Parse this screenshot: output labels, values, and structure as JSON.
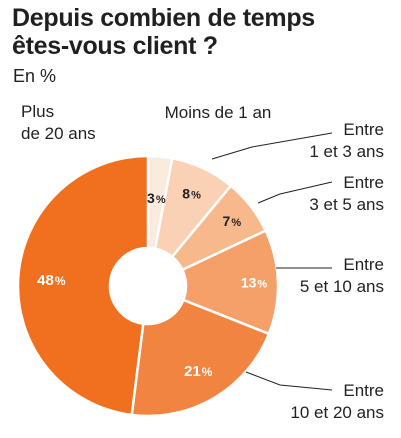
{
  "title_line1": "Depuis combien de temps",
  "title_line2": "êtes-vous client ?",
  "subtitle": "En %",
  "chart_data": {
    "type": "pie",
    "title": "Depuis combien de temps êtes-vous client ?",
    "subtitle": "En %",
    "donut": true,
    "categories": [
      "Moins de 1 an",
      "Entre 1 et 3 ans",
      "Entre 3 et 5 ans",
      "Entre 5 et 10 ans",
      "Entre 10 et 20 ans",
      "Plus de 20 ans"
    ],
    "values": [
      3,
      8,
      7,
      13,
      21,
      48
    ],
    "value_labels": [
      "3",
      "8",
      "7",
      "13",
      "21",
      "48"
    ],
    "percent_sign": "%",
    "label_lines": [
      [
        "Moins de 1 an"
      ],
      [
        "Entre",
        "1 et 3 ans"
      ],
      [
        "Entre",
        "3 et 5 ans"
      ],
      [
        "Entre",
        "5 et 10 ans"
      ],
      [
        "Entre",
        "10 et 20 ans"
      ],
      [
        "Plus",
        "de 20 ans"
      ]
    ],
    "colors": [
      "#fbebdf",
      "#fad1b4",
      "#f7b88b",
      "#f4a068",
      "#f28442",
      "#f07020"
    ],
    "label_colors": [
      "#231f20",
      "#231f20",
      "#231f20",
      "#ffffff",
      "#ffffff",
      "#ffffff"
    ]
  }
}
